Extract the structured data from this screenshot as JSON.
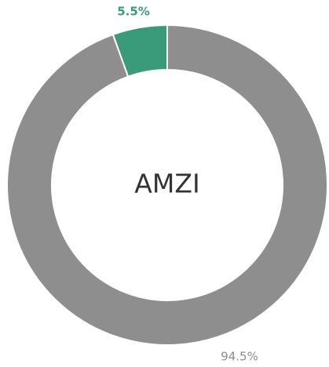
{
  "chart_data": {
    "type": "donut",
    "center_label": "AMZI",
    "values": [
      94.5,
      5.5
    ],
    "value_labels": [
      "94.5%",
      "5.5%"
    ],
    "colors": [
      "#8e8e8e",
      "#3a9b7a"
    ]
  }
}
